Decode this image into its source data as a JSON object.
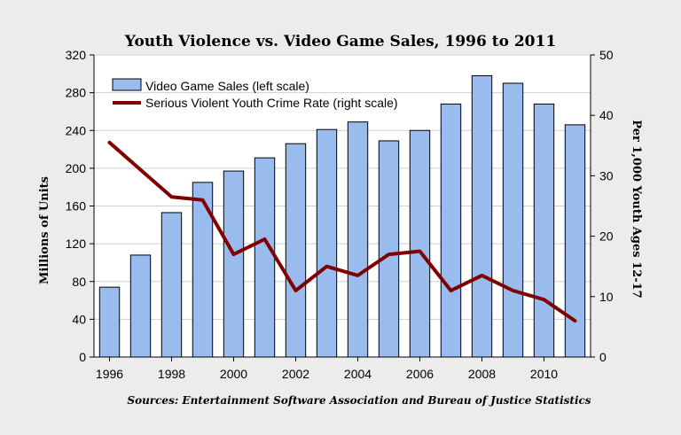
{
  "chart_data": {
    "type": "bar",
    "title": "Youth Violence vs. Video Game Sales, 1996 to 2011",
    "ylabel_left": "Millions of Units",
    "ylabel_right": "Per 1,000 Youth Ages 12-17",
    "source": "Sources: Entertainment Software Association and Bureau of Justice Statistics",
    "ylim_left": [
      0,
      320
    ],
    "yticks_left": [
      0,
      40,
      80,
      120,
      160,
      200,
      240,
      280,
      320
    ],
    "ylim_right": [
      0,
      50
    ],
    "yticks_right": [
      0,
      10,
      20,
      30,
      40,
      50
    ],
    "xticks": [
      1996,
      1998,
      2000,
      2002,
      2004,
      2006,
      2008,
      2010
    ],
    "x": [
      1996,
      1997,
      1998,
      1999,
      2000,
      2001,
      2002,
      2003,
      2004,
      2005,
      2006,
      2007,
      2008,
      2009,
      2010,
      2011
    ],
    "series": [
      {
        "name": "Video Game Sales (left scale)",
        "type": "bar",
        "axis": "left",
        "color": "#99bbee",
        "values": [
          74,
          108,
          153,
          185,
          197,
          211,
          226,
          241,
          249,
          229,
          240,
          268,
          298,
          290,
          268,
          246
        ]
      },
      {
        "name": "Serious Violent Youth Crime Rate (right scale)",
        "type": "line",
        "axis": "right",
        "color": "#800000",
        "values": [
          35.5,
          31.0,
          26.5,
          26.0,
          17.0,
          19.5,
          11.0,
          15.0,
          13.5,
          17.0,
          17.5,
          11.0,
          13.5,
          11.0,
          9.5,
          6.0
        ]
      }
    ],
    "grid": true,
    "legend_position": "top-left"
  }
}
